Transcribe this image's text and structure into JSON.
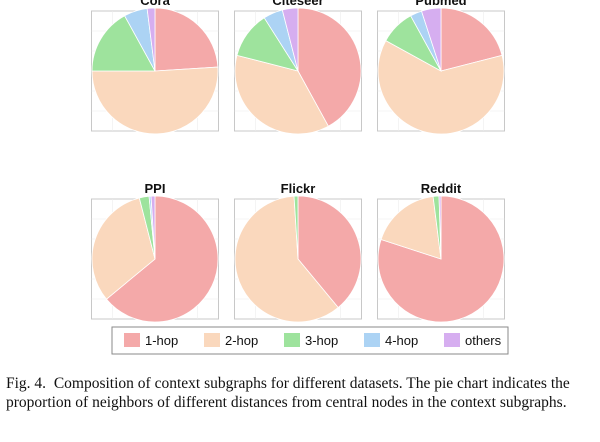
{
  "chart_data": {
    "type": "pie",
    "categories": [
      "1-hop",
      "2-hop",
      "3-hop",
      "4-hop",
      "others"
    ],
    "colors": [
      "#f4a9a9",
      "#fad8bd",
      "#9ee39d",
      "#acd3f4",
      "#d6aef0"
    ],
    "charts": [
      {
        "title": "Cora",
        "values": [
          24,
          51,
          17,
          6,
          2
        ]
      },
      {
        "title": "Citeseer",
        "values": [
          42,
          37,
          12,
          5,
          4
        ]
      },
      {
        "title": "Pubmed",
        "values": [
          21,
          62,
          9,
          3,
          5
        ]
      },
      {
        "title": "PPI",
        "values": [
          64,
          32,
          2.5,
          0.5,
          1
        ]
      },
      {
        "title": "Flickr",
        "values": [
          39,
          60,
          1,
          0,
          0
        ]
      },
      {
        "title": "Reddit",
        "values": [
          80,
          18,
          1.5,
          0,
          0.5
        ]
      }
    ]
  },
  "caption": {
    "label": "Fig. 4.",
    "text": "Composition of context subgraphs for different datasets. The pie chart indicates the proportion of neighbors of different distances from central nodes in the context subgraphs."
  }
}
